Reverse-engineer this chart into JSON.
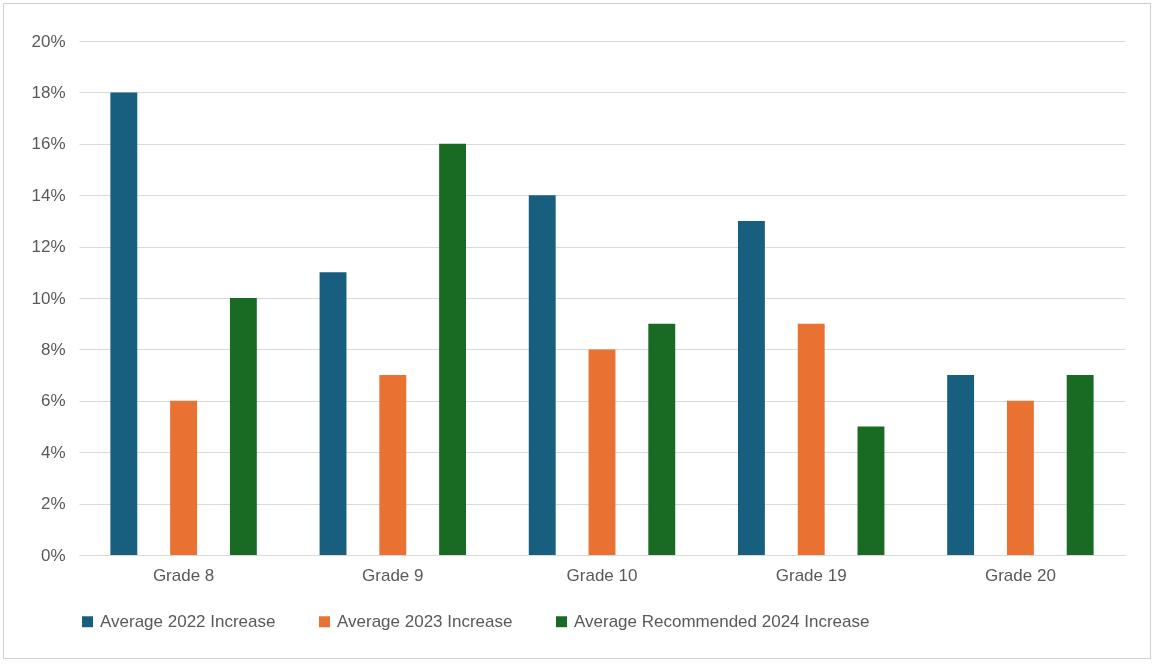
{
  "chart_data": {
    "type": "bar",
    "categories": [
      "Grade 8",
      "Grade 9",
      "Grade 10",
      "Grade 19",
      "Grade 20"
    ],
    "series": [
      {
        "name": "Average 2022 Increase",
        "color": "#175e7f",
        "values": [
          18,
          11,
          14,
          13,
          7
        ]
      },
      {
        "name": "Average 2023 Increase",
        "color": "#e97132",
        "values": [
          6,
          7,
          8,
          9,
          6
        ]
      },
      {
        "name": "Average Recommended 2024 Increase",
        "color": "#196b24",
        "values": [
          10,
          16,
          9,
          5,
          7
        ]
      }
    ],
    "ylim": [
      0,
      20
    ],
    "yticks": [
      {
        "value": 0,
        "label": "0%"
      },
      {
        "value": 2,
        "label": "2%"
      },
      {
        "value": 4,
        "label": "4%"
      },
      {
        "value": 6,
        "label": "6%"
      },
      {
        "value": 8,
        "label": "8%"
      },
      {
        "value": 10,
        "label": "10%"
      },
      {
        "value": 12,
        "label": "12%"
      },
      {
        "value": 14,
        "label": "14%"
      },
      {
        "value": 16,
        "label": "16%"
      },
      {
        "value": 18,
        "label": "18%"
      },
      {
        "value": 20,
        "label": "20%"
      }
    ],
    "grid": "y",
    "legend": "bottom"
  }
}
